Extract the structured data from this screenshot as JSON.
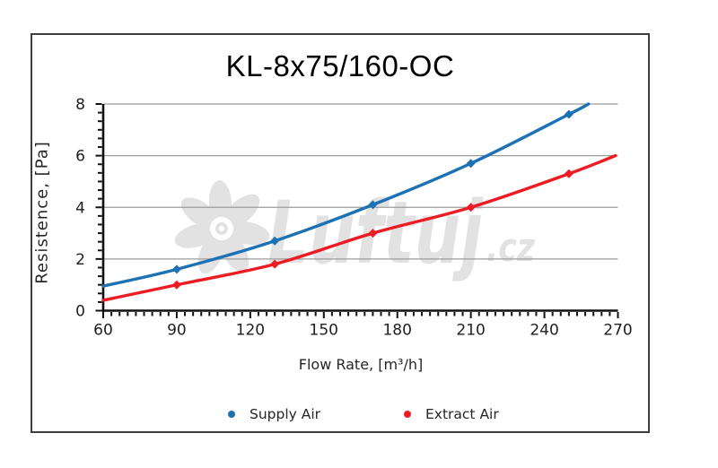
{
  "chart_data": {
    "type": "line",
    "title": "KL-8x75/160-OC",
    "xlabel": "Flow Rate, [m³/h]",
    "ylabel": "Resistence, [Pa]",
    "xlim": [
      60,
      270
    ],
    "ylim": [
      0,
      8
    ],
    "x_ticks": [
      60,
      90,
      120,
      150,
      180,
      210,
      240,
      270
    ],
    "y_ticks": [
      0,
      2,
      4,
      6,
      8
    ],
    "x_minor_per_major": 9,
    "y_minor_per_major": 6,
    "grid": "horizontal gridlines at y=2,4,6,8",
    "legend_position": "bottom",
    "axis_color": "#111111",
    "grid_color": "#9c9c9c",
    "tick_label_color": "#1f1f1f",
    "series": [
      {
        "name": "Supply Air",
        "color": "#1d72b4",
        "x": [
          60,
          90,
          130,
          170,
          210,
          250,
          258
        ],
        "y": [
          0.95,
          1.6,
          2.7,
          4.1,
          5.7,
          7.6,
          8.0
        ],
        "marker_indices": [
          1,
          2,
          3,
          4,
          5
        ]
      },
      {
        "name": "Extract Air",
        "color": "#ed1c24",
        "x": [
          60,
          90,
          130,
          170,
          210,
          250,
          269
        ],
        "y": [
          0.4,
          1.0,
          1.8,
          3.0,
          4.0,
          5.3,
          6.0
        ],
        "marker_indices": [
          1,
          2,
          3,
          4,
          5
        ]
      }
    ]
  },
  "watermark": {
    "brand": "Luftuj",
    "suffix": ".cz",
    "color": "#e2e2e2"
  }
}
